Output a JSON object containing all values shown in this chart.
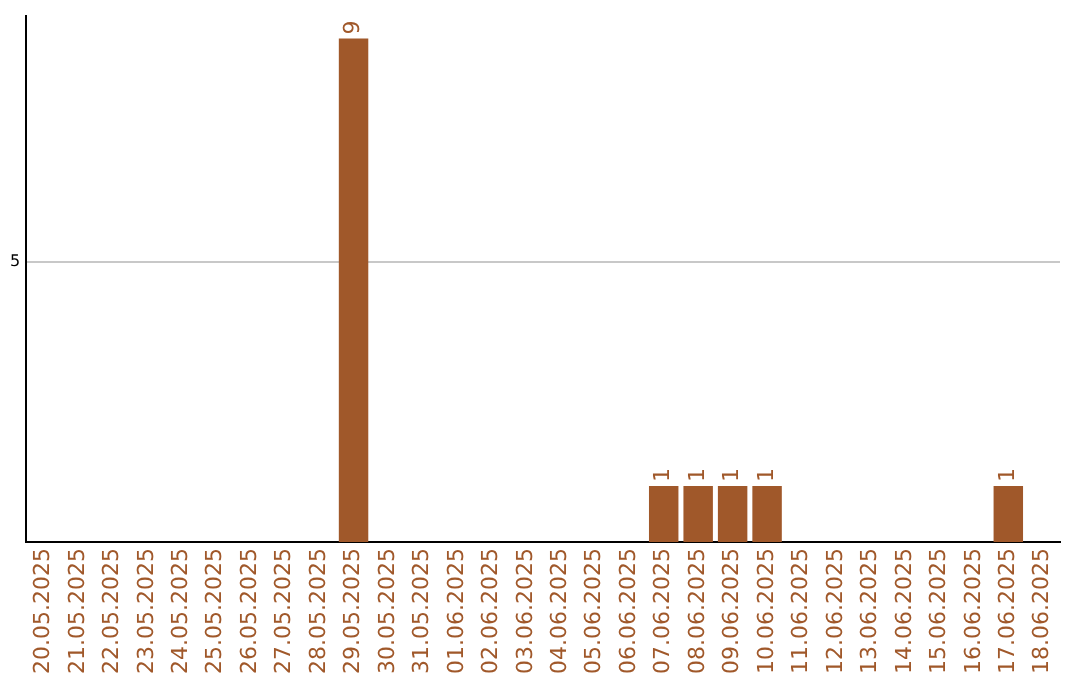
{
  "chart_data": {
    "type": "bar",
    "categories": [
      "20.05.2025",
      "21.05.2025",
      "22.05.2025",
      "23.05.2025",
      "24.05.2025",
      "25.05.2025",
      "26.05.2025",
      "27.05.2025",
      "28.05.2025",
      "29.05.2025",
      "30.05.2025",
      "31.05.2025",
      "01.06.2025",
      "02.06.2025",
      "03.06.2025",
      "04.06.2025",
      "05.06.2025",
      "06.06.2025",
      "07.06.2025",
      "08.06.2025",
      "09.06.2025",
      "10.06.2025",
      "11.06.2025",
      "12.06.2025",
      "13.06.2025",
      "14.06.2025",
      "15.06.2025",
      "16.06.2025",
      "17.06.2025",
      "18.06.2025"
    ],
    "values": [
      0,
      0,
      0,
      0,
      0,
      0,
      0,
      0,
      0,
      9,
      0,
      0,
      0,
      0,
      0,
      0,
      0,
      0,
      1,
      1,
      1,
      1,
      0,
      0,
      0,
      0,
      0,
      0,
      1,
      0
    ],
    "value_labels": [
      null,
      null,
      null,
      null,
      null,
      null,
      null,
      null,
      null,
      "9",
      null,
      null,
      null,
      null,
      null,
      null,
      null,
      null,
      "1",
      "1",
      "1",
      "1",
      null,
      null,
      null,
      null,
      null,
      null,
      "1",
      null
    ],
    "color": "#a0582a",
    "ylim": [
      0,
      9.4
    ],
    "yticks": [
      5
    ],
    "grid": "y",
    "legend": false
  }
}
